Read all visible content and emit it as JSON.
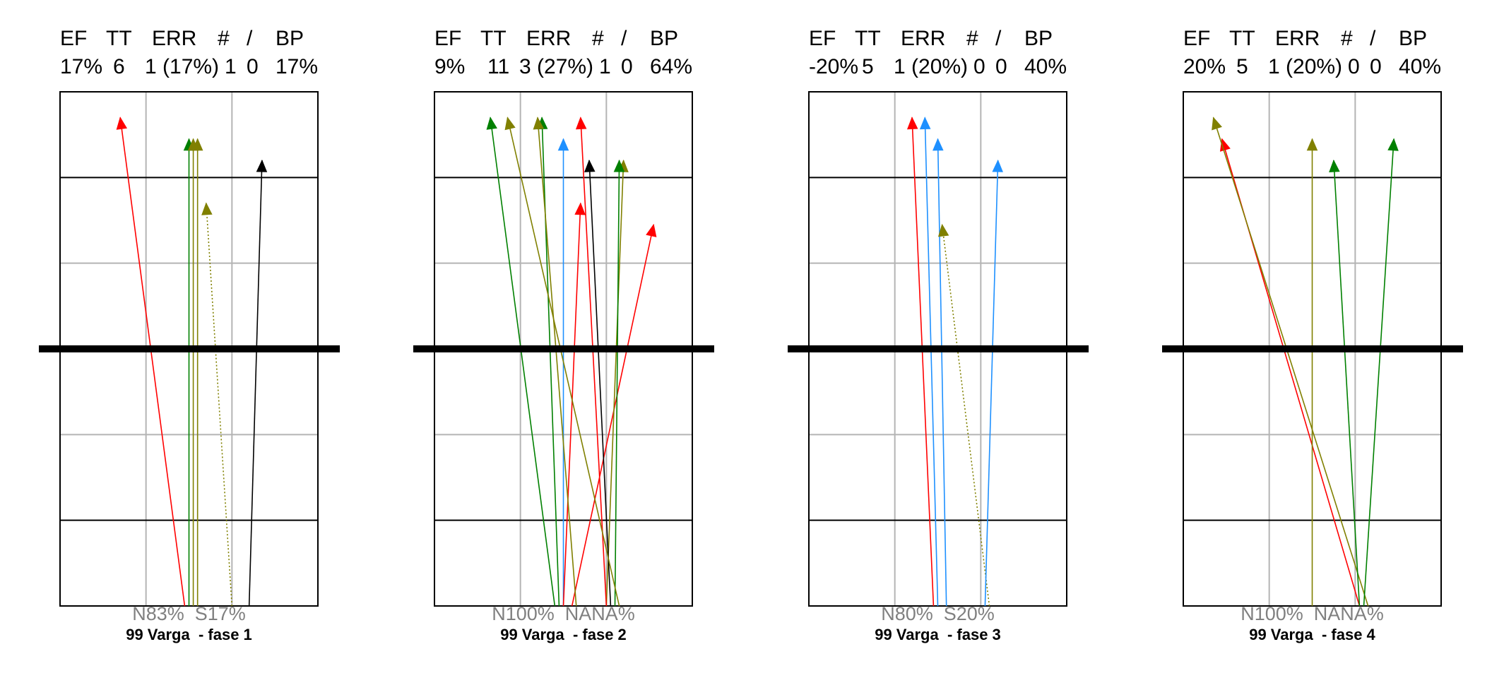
{
  "colors": {
    "red": "#ff0000",
    "green": "#008000",
    "olive": "#808000",
    "blue": "#1e90ff",
    "black": "#000000",
    "grid_light": "#b4b4b4",
    "grid_dark": "#000000"
  },
  "chart_data": [
    {
      "type": "line",
      "header_labels": [
        "EF",
        "TT",
        "ERR",
        "#",
        "/",
        "BP"
      ],
      "header_values": [
        "17%",
        "6",
        "1 (17%)",
        "1",
        "0",
        "17%"
      ],
      "footer_stats": "N83%  S17%",
      "caption": "99 Varga  - fase 1",
      "xlim": [
        0,
        3
      ],
      "ylim": [
        -3,
        3
      ],
      "grid": true,
      "center_line_y": 0,
      "arrows": [
        {
          "x0": 1.45,
          "y0": -3.0,
          "x1": 0.7,
          "y1": 2.7,
          "color": "red",
          "style": "solid"
        },
        {
          "x0": 1.5,
          "y0": -3.0,
          "x1": 1.5,
          "y1": 2.45,
          "color": "green",
          "style": "solid"
        },
        {
          "x0": 1.55,
          "y0": -3.0,
          "x1": 1.55,
          "y1": 2.45,
          "color": "olive",
          "style": "solid"
        },
        {
          "x0": 1.6,
          "y0": -3.0,
          "x1": 1.6,
          "y1": 2.45,
          "color": "olive",
          "style": "solid"
        },
        {
          "x0": 2.0,
          "y0": -3.0,
          "x1": 1.7,
          "y1": 1.7,
          "color": "olive",
          "style": "dotted"
        },
        {
          "x0": 2.2,
          "y0": -3.0,
          "x1": 2.35,
          "y1": 2.2,
          "color": "black",
          "style": "solid"
        }
      ]
    },
    {
      "type": "line",
      "header_labels": [
        "EF",
        "TT",
        "ERR",
        "#",
        "/",
        "BP"
      ],
      "header_values": [
        "9%",
        "11",
        "3 (27%)",
        "1",
        "0",
        "64%"
      ],
      "footer_stats": "N100%  NANA%",
      "caption": "99 Varga  - fase 2",
      "xlim": [
        0,
        3
      ],
      "ylim": [
        -3,
        3
      ],
      "grid": true,
      "center_line_y": 0,
      "arrows": [
        {
          "x0": 1.4,
          "y0": -3.0,
          "x1": 0.65,
          "y1": 2.7,
          "color": "green",
          "style": "solid"
        },
        {
          "x0": 1.45,
          "y0": -3.0,
          "x1": 1.25,
          "y1": 2.7,
          "color": "green",
          "style": "solid"
        },
        {
          "x0": 1.5,
          "y0": -3.0,
          "x1": 1.5,
          "y1": 2.45,
          "color": "blue",
          "style": "solid"
        },
        {
          "x0": 1.5,
          "y0": -3.0,
          "x1": 1.7,
          "y1": 1.7,
          "color": "red",
          "style": "solid"
        },
        {
          "x0": 1.6,
          "y0": -3.0,
          "x1": 2.55,
          "y1": 1.45,
          "color": "red",
          "style": "solid"
        },
        {
          "x0": 1.65,
          "y0": -3.0,
          "x1": 1.2,
          "y1": 2.7,
          "color": "olive",
          "style": "solid"
        },
        {
          "x0": 2.0,
          "y0": -3.0,
          "x1": 2.2,
          "y1": 2.2,
          "color": "olive",
          "style": "solid"
        },
        {
          "x0": 2.0,
          "y0": -3.0,
          "x1": 1.7,
          "y1": 2.7,
          "color": "red",
          "style": "solid"
        },
        {
          "x0": 2.05,
          "y0": -3.0,
          "x1": 1.8,
          "y1": 2.2,
          "color": "black",
          "style": "solid"
        },
        {
          "x0": 2.1,
          "y0": -3.0,
          "x1": 2.15,
          "y1": 2.2,
          "color": "green",
          "style": "solid"
        },
        {
          "x0": 2.15,
          "y0": -3.0,
          "x1": 0.85,
          "y1": 2.7,
          "color": "olive",
          "style": "solid"
        }
      ]
    },
    {
      "type": "line",
      "header_labels": [
        "EF",
        "TT",
        "ERR",
        "#",
        "/",
        "BP"
      ],
      "header_values": [
        "-20%",
        "5",
        "1 (20%)",
        "0",
        "0",
        "40%"
      ],
      "footer_stats": "N80%  S20%",
      "caption": "99 Varga  - fase 3",
      "xlim": [
        0,
        3
      ],
      "ylim": [
        -3,
        3
      ],
      "grid": true,
      "center_line_y": 0,
      "arrows": [
        {
          "x0": 1.45,
          "y0": -3.0,
          "x1": 1.2,
          "y1": 2.7,
          "color": "red",
          "style": "solid"
        },
        {
          "x0": 1.5,
          "y0": -3.0,
          "x1": 1.35,
          "y1": 2.7,
          "color": "blue",
          "style": "solid"
        },
        {
          "x0": 1.6,
          "y0": -3.0,
          "x1": 1.5,
          "y1": 2.45,
          "color": "blue",
          "style": "solid"
        },
        {
          "x0": 2.1,
          "y0": -3.0,
          "x1": 1.55,
          "y1": 1.45,
          "color": "olive",
          "style": "dotted"
        },
        {
          "x0": 2.05,
          "y0": -3.0,
          "x1": 2.2,
          "y1": 2.2,
          "color": "blue",
          "style": "solid"
        }
      ]
    },
    {
      "type": "line",
      "header_labels": [
        "EF",
        "TT",
        "ERR",
        "#",
        "/",
        "BP"
      ],
      "header_values": [
        "20%",
        "5",
        "1 (20%)",
        "0",
        "0",
        "40%"
      ],
      "footer_stats": "N100%  NANA%",
      "caption": "99 Varga  - fase 4",
      "xlim": [
        0,
        3
      ],
      "ylim": [
        -3,
        3
      ],
      "grid": true,
      "center_line_y": 0,
      "arrows": [
        {
          "x0": 2.05,
          "y0": -3.0,
          "x1": 0.45,
          "y1": 2.45,
          "color": "red",
          "style": "solid"
        },
        {
          "x0": 2.15,
          "y0": -3.0,
          "x1": 0.35,
          "y1": 2.7,
          "color": "olive",
          "style": "solid"
        },
        {
          "x0": 1.5,
          "y0": -3.0,
          "x1": 1.5,
          "y1": 2.45,
          "color": "olive",
          "style": "solid"
        },
        {
          "x0": 2.05,
          "y0": -3.0,
          "x1": 1.75,
          "y1": 2.2,
          "color": "green",
          "style": "solid"
        },
        {
          "x0": 2.1,
          "y0": -3.0,
          "x1": 2.45,
          "y1": 2.45,
          "color": "green",
          "style": "solid"
        }
      ]
    }
  ]
}
